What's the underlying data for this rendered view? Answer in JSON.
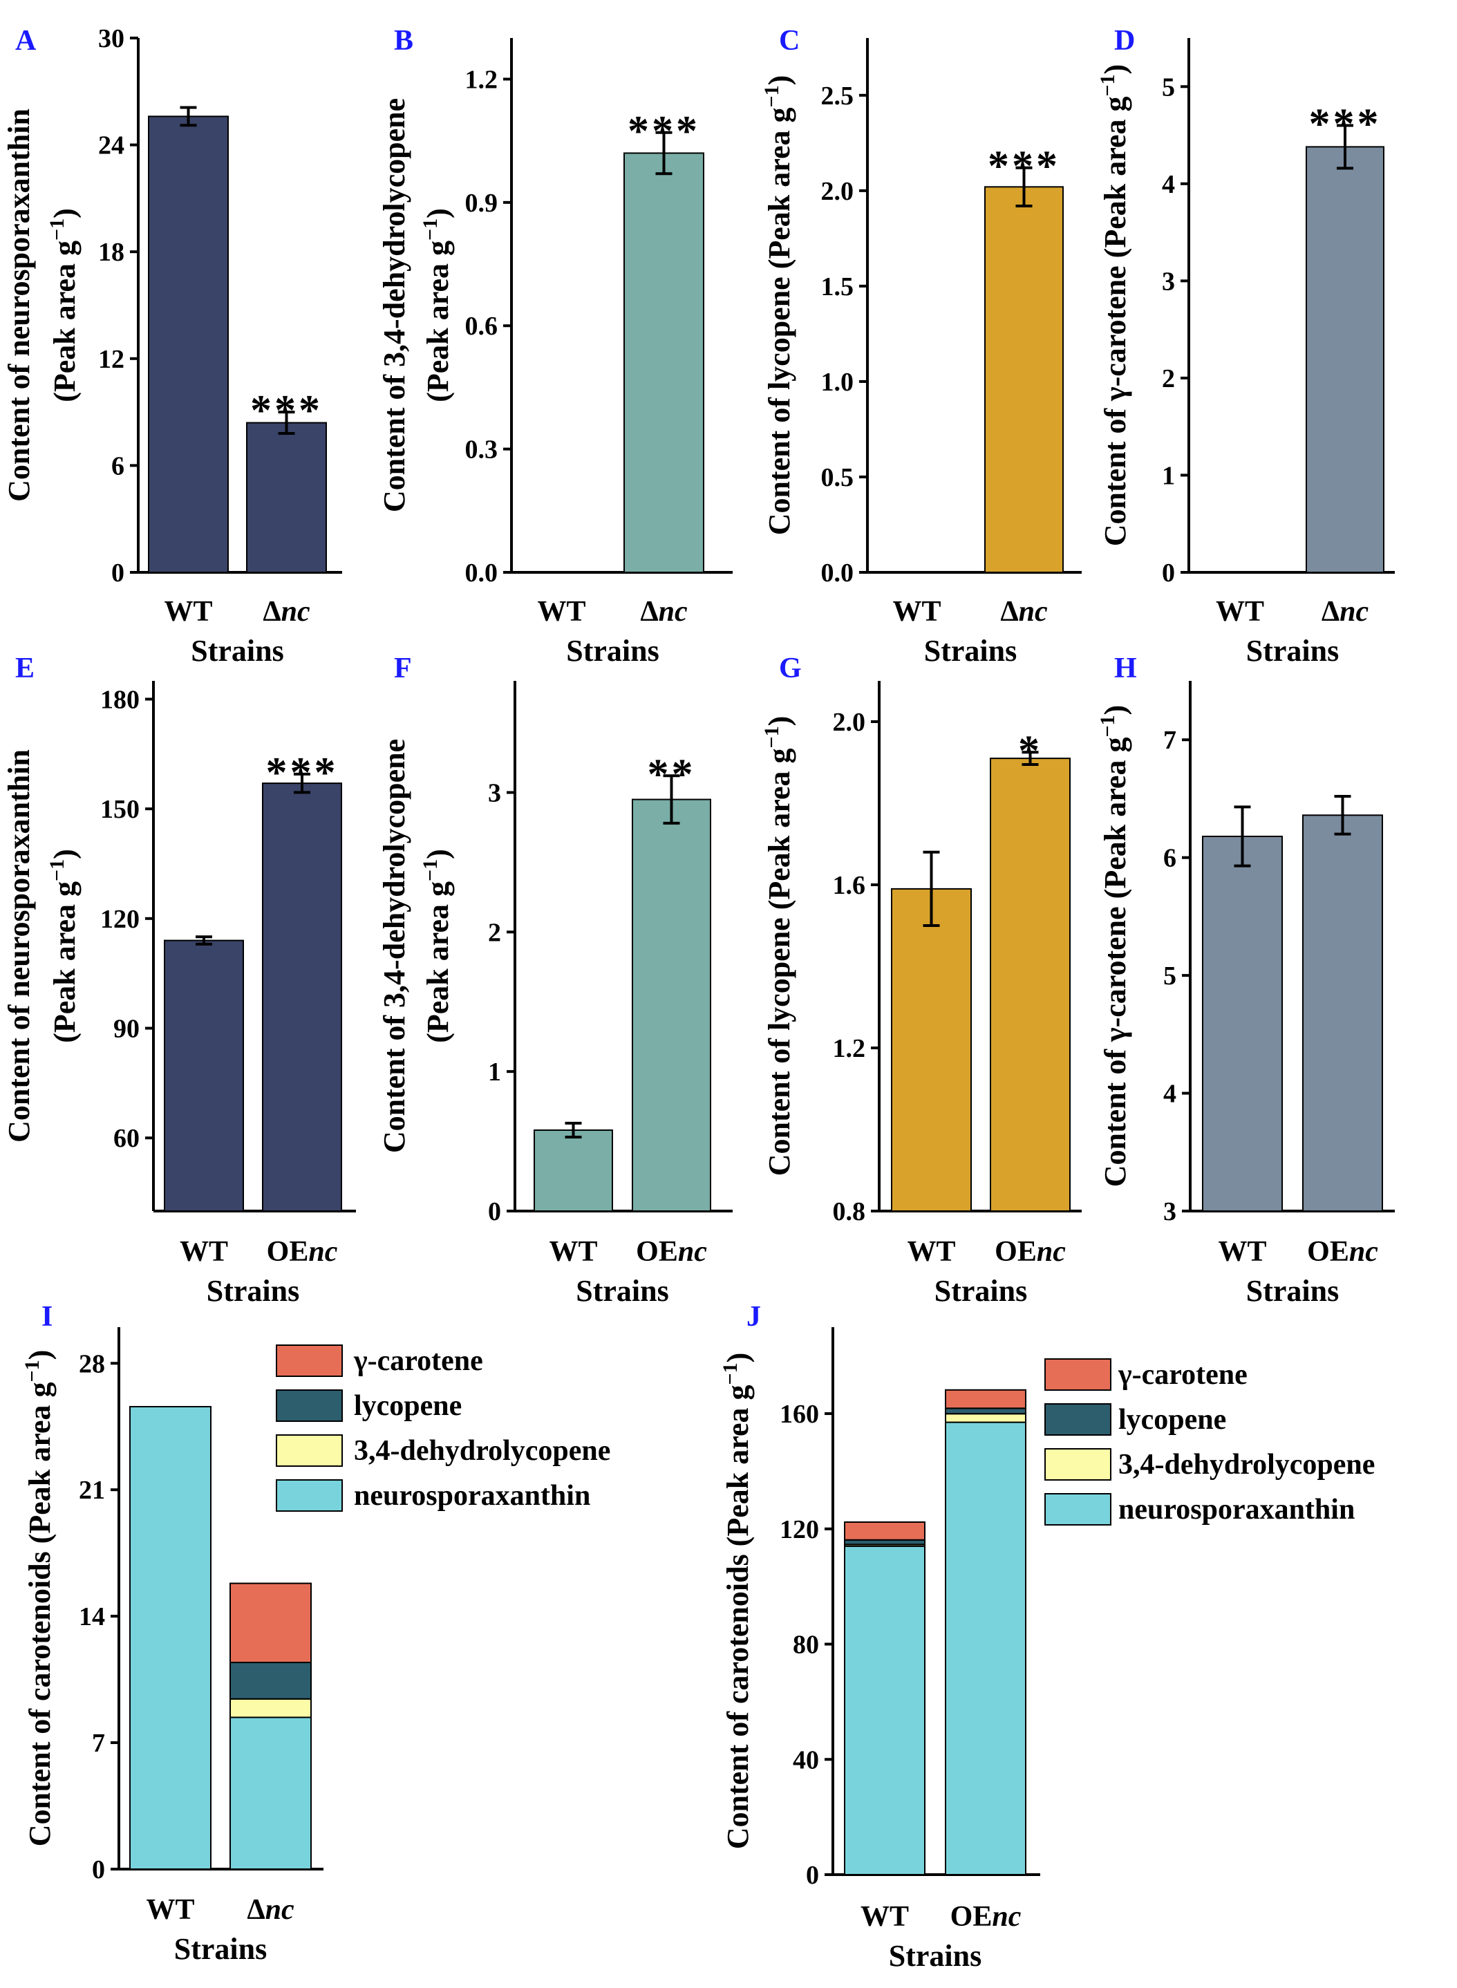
{
  "chart_data": [
    {
      "panel": "A",
      "type": "bar",
      "categories": [
        "WT",
        "Δnc"
      ],
      "values": [
        25.6,
        8.4
      ],
      "errors": [
        0.5,
        0.6
      ],
      "significance": [
        "",
        "***"
      ],
      "ylabel_line1": "Content of neurosporaxanthin",
      "ylabel_line2": "(Peak area g⁻¹)",
      "xlabel": "Strains",
      "ylim": [
        0,
        30
      ],
      "yticks": [
        0,
        6,
        12,
        18,
        24,
        30
      ],
      "tick_format": "int",
      "color": "#3a4468"
    },
    {
      "panel": "B",
      "type": "bar",
      "categories": [
        "WT",
        "Δnc"
      ],
      "values": [
        0,
        1.02
      ],
      "errors": [
        0,
        0.05
      ],
      "significance": [
        "",
        "***"
      ],
      "ylabel_line1": "Content of 3,4-dehydrolycopene",
      "ylabel_line2": "(Peak area g⁻¹)",
      "xlabel": "Strains",
      "ylim": [
        0,
        1.3
      ],
      "yticks": [
        0.0,
        0.3,
        0.6,
        0.9,
        1.2
      ],
      "tick_format": "1",
      "color": "#7aaea6"
    },
    {
      "panel": "C",
      "type": "bar",
      "categories": [
        "WT",
        "Δnc"
      ],
      "values": [
        0,
        2.02
      ],
      "errors": [
        0,
        0.1
      ],
      "significance": [
        "",
        "***"
      ],
      "ylabel_line1": "Content of lycopene (Peak area g⁻¹)",
      "ylabel_line2": "",
      "xlabel": "Strains",
      "ylim": [
        0,
        2.8
      ],
      "yticks": [
        0.0,
        0.5,
        1.0,
        1.5,
        2.0,
        2.5
      ],
      "tick_format": "1",
      "color": "#d8a22b"
    },
    {
      "panel": "D",
      "type": "bar",
      "categories": [
        "WT",
        "Δnc"
      ],
      "values": [
        0,
        4.38
      ],
      "errors": [
        0,
        0.22
      ],
      "significance": [
        "",
        "***"
      ],
      "ylabel_line1": "Content of γ-carotene (Peak area g⁻¹)",
      "ylabel_line2": "",
      "xlabel": "Strains",
      "ylim": [
        0,
        5.5
      ],
      "yticks": [
        0,
        1,
        2,
        3,
        4,
        5
      ],
      "tick_format": "int",
      "color": "#7a8c9e"
    },
    {
      "panel": "E",
      "type": "bar",
      "categories": [
        "WT",
        "OEnc"
      ],
      "values": [
        114,
        157
      ],
      "errors": [
        1,
        2.5
      ],
      "significance": [
        "",
        "***"
      ],
      "ylabel_line1": "Content of neurosporaxanthin",
      "ylabel_line2": "(Peak area g⁻¹)",
      "xlabel": "Strains",
      "ylim": [
        40,
        185
      ],
      "yticks": [
        60,
        90,
        120,
        150,
        180
      ],
      "tick_format": "int",
      "color": "#3a4468"
    },
    {
      "panel": "F",
      "type": "bar",
      "categories": [
        "WT",
        "OEnc"
      ],
      "values": [
        0.58,
        2.95
      ],
      "errors": [
        0.05,
        0.17
      ],
      "significance": [
        "",
        "**"
      ],
      "ylabel_line1": "Content of 3,4-dehydrolycopene",
      "ylabel_line2": "(Peak area g⁻¹)",
      "xlabel": "Strains",
      "ylim": [
        0,
        3.8
      ],
      "yticks": [
        0,
        1,
        2,
        3
      ],
      "tick_format": "int",
      "color": "#7aaea6"
    },
    {
      "panel": "G",
      "type": "bar",
      "categories": [
        "WT",
        "OEnc"
      ],
      "values": [
        1.59,
        1.91
      ],
      "errors": [
        0.09,
        0.015
      ],
      "significance": [
        "",
        "*"
      ],
      "ylabel_line1": "Content of lycopene (Peak area g⁻¹)",
      "ylabel_line2": "",
      "xlabel": "Strains",
      "ylim": [
        0.8,
        2.1
      ],
      "yticks": [
        0.8,
        1.2,
        1.6,
        2.0
      ],
      "tick_format": "1",
      "color": "#d8a22b"
    },
    {
      "panel": "H",
      "type": "bar",
      "categories": [
        "WT",
        "OEnc"
      ],
      "values": [
        6.18,
        6.36
      ],
      "errors": [
        0.25,
        0.16
      ],
      "significance": [
        "",
        ""
      ],
      "ylabel_line1": "Content of γ-carotene (Peak area g⁻¹)",
      "ylabel_line2": "",
      "xlabel": "Strains",
      "ylim": [
        3,
        7.5
      ],
      "yticks": [
        3,
        4,
        5,
        6,
        7
      ],
      "tick_format": "int",
      "color": "#7a8c9e"
    },
    {
      "panel": "I",
      "type": "stacked_bar",
      "categories": [
        "WT",
        "Δnc"
      ],
      "series": [
        {
          "name": "neurosporaxanthin",
          "values": [
            25.6,
            8.4
          ],
          "color": "#79d3dc"
        },
        {
          "name": "3,4-dehydrolycopene",
          "values": [
            0,
            1.02
          ],
          "color": "#fbfba8"
        },
        {
          "name": "lycopene",
          "values": [
            0,
            2.02
          ],
          "color": "#2c5e6e"
        },
        {
          "name": "γ-carotene",
          "values": [
            0,
            4.38
          ],
          "color": "#e66e56"
        }
      ],
      "legend_order": [
        "γ-carotene",
        "lycopene",
        "3,4-dehydrolycopene",
        "neurosporaxanthin"
      ],
      "ylabel_line1": "Content of carotenoids (Peak area g⁻¹)",
      "xlabel": "Strains",
      "ylim": [
        0,
        30
      ],
      "yticks": [
        0,
        7,
        14,
        21,
        28
      ],
      "tick_format": "int"
    },
    {
      "panel": "J",
      "type": "stacked_bar",
      "categories": [
        "WT",
        "OEnc"
      ],
      "series": [
        {
          "name": "neurosporaxanthin",
          "values": [
            114,
            157
          ],
          "color": "#79d3dc"
        },
        {
          "name": "3,4-dehydrolycopene",
          "values": [
            0.58,
            2.95
          ],
          "color": "#fbfba8"
        },
        {
          "name": "lycopene",
          "values": [
            1.59,
            1.91
          ],
          "color": "#2c5e6e"
        },
        {
          "name": "γ-carotene",
          "values": [
            6.18,
            6.36
          ],
          "color": "#e66e56"
        }
      ],
      "legend_order": [
        "γ-carotene",
        "lycopene",
        "3,4-dehydrolycopene",
        "neurosporaxanthin"
      ],
      "ylabel_line1": "Content of carotenoids (Peak area g⁻¹)",
      "xlabel": "Strains",
      "ylim": [
        0,
        190
      ],
      "yticks": [
        0,
        40,
        80,
        120,
        160
      ],
      "tick_format": "int"
    }
  ]
}
